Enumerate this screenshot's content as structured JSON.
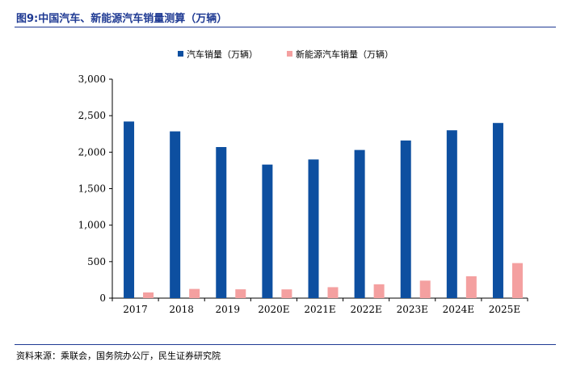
{
  "figure": {
    "title": "图9:中国汽车、新能源汽车销量测算（万辆）",
    "source": "资料来源：乘联会，国务院办公厅，民生证券研究院"
  },
  "chart_data": {
    "type": "bar",
    "categories": [
      "2017",
      "2018",
      "2019",
      "2020E",
      "2021E",
      "2022E",
      "2023E",
      "2024E",
      "2025E"
    ],
    "series": [
      {
        "name": "汽车销量（万辆）",
        "color": "#0d4fa0",
        "values": [
          2420,
          2285,
          2070,
          1830,
          1900,
          2030,
          2160,
          2300,
          2400
        ]
      },
      {
        "name": "新能源汽车销量（万辆）",
        "color": "#f4a0a0",
        "values": [
          78,
          126,
          121,
          120,
          150,
          190,
          240,
          300,
          480
        ]
      }
    ],
    "ylim": [
      0,
      3000
    ],
    "yticks": [
      0,
      500,
      1000,
      1500,
      2000,
      2500,
      3000
    ],
    "ytick_labels": [
      "0",
      "500",
      "1,000",
      "1,500",
      "2,000",
      "2,500",
      "3,000"
    ],
    "legend_position": "top-center",
    "grid": false
  }
}
